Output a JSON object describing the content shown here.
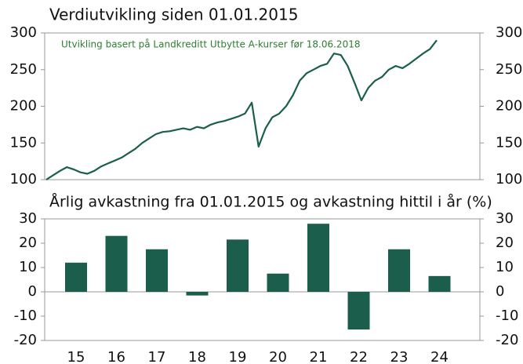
{
  "chart_data": [
    {
      "type": "line",
      "title": "Verdiutvikling siden 01.01.2015",
      "annotation": "Utvikling basert på Landkreditt Utbytte A-kurser før 18.06.2018",
      "color": "#1b5e4c",
      "values": [
        100,
        106,
        112,
        117,
        114,
        110,
        108,
        112,
        118,
        122,
        126,
        130,
        136,
        142,
        150,
        156,
        162,
        165,
        166,
        168,
        170,
        168,
        172,
        170,
        175,
        178,
        180,
        183,
        186,
        190,
        205,
        145,
        170,
        185,
        190,
        200,
        215,
        235,
        245,
        250,
        255,
        258,
        272,
        270,
        255,
        232,
        208,
        225,
        235,
        240,
        250,
        255,
        252,
        258,
        265,
        272,
        278,
        290
      ],
      "ylim": [
        100,
        300
      ],
      "yticks": [
        100,
        150,
        200,
        250,
        300
      ]
    },
    {
      "type": "bar",
      "title": "Årlig avkastning fra 01.01.2015 og avkastning hittil i år (%)",
      "categories": [
        "15",
        "16",
        "17",
        "18",
        "19",
        "20",
        "21",
        "22",
        "23",
        "24"
      ],
      "values": [
        12,
        23,
        17.5,
        -1.5,
        21.5,
        7.5,
        28,
        -15.5,
        17.5,
        6.5
      ],
      "color": "#1b5e4c",
      "ylim": [
        -20,
        30
      ],
      "yticks": [
        -20,
        -10,
        0,
        10,
        20,
        30
      ]
    }
  ]
}
